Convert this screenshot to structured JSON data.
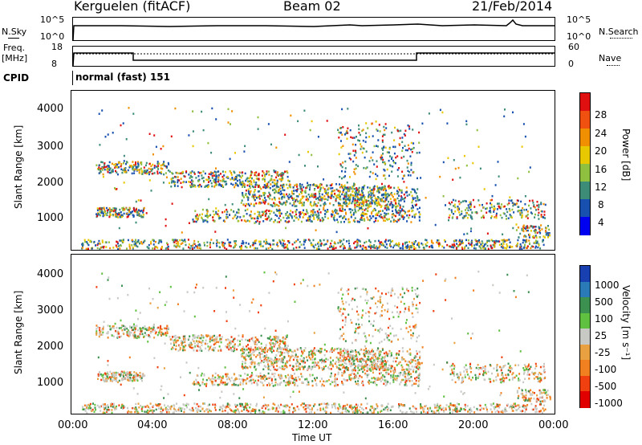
{
  "header": {
    "station": "Kerguelen (fitACF)",
    "beam": "Beam 02",
    "date": "21/Feb/2014"
  },
  "sky_panel": {
    "left_label": "N.Sky",
    "right_label": "N.Search",
    "left_ticks": [
      "10^5",
      "10^0"
    ],
    "right_ticks": [
      "10^5",
      "10^0"
    ]
  },
  "freq_panel": {
    "left_label_1": "Freq.",
    "left_label_2": "[MHz]",
    "right_label": "Nave",
    "left_ticks": [
      "18",
      "8"
    ],
    "right_ticks": [
      "60",
      "0"
    ]
  },
  "cpid": {
    "label": "CPID",
    "mode": "normal (fast) 151"
  },
  "chart_data": [
    {
      "type": "heatmap",
      "name": "power",
      "ylabel": "Slant Range [km]",
      "y_ticks": [
        "4000",
        "3000",
        "2000",
        "1000"
      ],
      "ylim": [
        180,
        4600
      ],
      "colorbar_label": "Power [dB]",
      "colorbar_ticks": [
        "28",
        "24",
        "20",
        "16",
        "12",
        "8",
        "4"
      ],
      "colorbar_colors": [
        "#e01010",
        "#f05010",
        "#f09000",
        "#e8c800",
        "#90c040",
        "#3c8c78",
        "#1850b0",
        "#0000f0"
      ]
    },
    {
      "type": "heatmap",
      "name": "velocity",
      "ylabel": "Slant Range [km]",
      "y_ticks": [
        "4000",
        "3000",
        "2000",
        "1000"
      ],
      "ylim": [
        180,
        4600
      ],
      "colorbar_label": "Velocity [m s⁻¹]",
      "colorbar_ticks": [
        "1000",
        "500",
        "100",
        "25",
        "-25",
        "-100",
        "-500",
        "-1000"
      ],
      "colorbar_colors": [
        "#1840b0",
        "#2a7ab8",
        "#3c9050",
        "#60c040",
        "#c8c8c4",
        "#e8a040",
        "#f08020",
        "#f04010",
        "#e00000"
      ]
    }
  ],
  "x_axis": {
    "ticks": [
      "00:00",
      "04:00",
      "08:00",
      "12:00",
      "16:00",
      "20:00",
      "00:00"
    ],
    "label": "Time UT"
  }
}
